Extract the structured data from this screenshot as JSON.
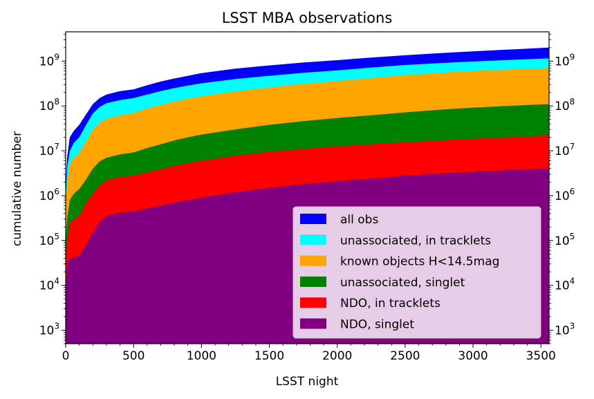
{
  "chart_data": {
    "type": "area",
    "title": "LSST MBA observations",
    "xlabel": "LSST night",
    "ylabel": "cumulative number",
    "xlim": [
      0,
      3560
    ],
    "ylim": [
      500,
      4500000000
    ],
    "yscale": "log",
    "grid": false,
    "legend_position": "lower-right",
    "x_ticks": [
      0,
      500,
      1000,
      1500,
      2000,
      2500,
      3000,
      3500
    ],
    "y_ticks": [
      {
        "value": 1000,
        "base": "10",
        "exp": "3"
      },
      {
        "value": 10000,
        "base": "10",
        "exp": "4"
      },
      {
        "value": 100000,
        "base": "10",
        "exp": "5"
      },
      {
        "value": 1000000,
        "base": "10",
        "exp": "6"
      },
      {
        "value": 10000000,
        "base": "10",
        "exp": "7"
      },
      {
        "value": 100000000,
        "base": "10",
        "exp": "8"
      },
      {
        "value": 1000000000,
        "base": "10",
        "exp": "9"
      }
    ],
    "x": [
      1,
      10,
      30,
      60,
      100,
      150,
      200,
      250,
      300,
      400,
      500,
      600,
      700,
      800,
      900,
      1000,
      1250,
      1500,
      1750,
      2000,
      2250,
      2500,
      2750,
      3000,
      3250,
      3560
    ],
    "series": [
      {
        "name": "all obs",
        "color": "#0000ff",
        "values": [
          2000000,
          7000000,
          20000000,
          28000000,
          38000000,
          65000000,
          110000000,
          150000000,
          180000000,
          215000000,
          235000000,
          290000000,
          350000000,
          410000000,
          470000000,
          540000000,
          680000000,
          800000000,
          930000000,
          1050000000,
          1200000000,
          1350000000,
          1500000000,
          1650000000,
          1800000000,
          2000000000
        ]
      },
      {
        "name": "unassociated, in tracklets",
        "color": "#00ffff",
        "values": [
          1000000,
          4000000,
          10000000,
          15000000,
          20000000,
          38000000,
          68000000,
          95000000,
          115000000,
          135000000,
          150000000,
          180000000,
          215000000,
          250000000,
          285000000,
          320000000,
          400000000,
          470000000,
          550000000,
          620000000,
          720000000,
          820000000,
          900000000,
          980000000,
          1060000000,
          1150000000
        ]
      },
      {
        "name": "known objects H<14.5mag",
        "color": "#ffa500",
        "values": [
          500000,
          2000000,
          5000000,
          7000000,
          9000000,
          16000000,
          30000000,
          42000000,
          52000000,
          62000000,
          70000000,
          88000000,
          105000000,
          125000000,
          145000000,
          165000000,
          210000000,
          260000000,
          310000000,
          360000000,
          420000000,
          490000000,
          550000000,
          600000000,
          650000000,
          700000000
        ]
      },
      {
        "name": "unassociated, singlet",
        "color": "#008000",
        "values": [
          100000,
          300000,
          800000,
          1100000,
          1400000,
          2300000,
          4000000,
          5800000,
          7000000,
          8300000,
          9200000,
          11500000,
          14000000,
          17000000,
          20000000,
          23000000,
          30000000,
          38000000,
          46000000,
          54000000,
          62000000,
          72000000,
          82000000,
          92000000,
          100000000,
          110000000
        ]
      },
      {
        "name": "NDO, in tracklets",
        "color": "#ff0000",
        "values": [
          30000,
          100000,
          250000,
          300000,
          350000,
          700000,
          1100000,
          1700000,
          2200000,
          2600000,
          2800000,
          3300000,
          3900000,
          4600000,
          5300000,
          6000000,
          7800000,
          9500000,
          11000000,
          12500000,
          14000000,
          15500000,
          17000000,
          18500000,
          20000000,
          22000000
        ]
      },
      {
        "name": "NDO, singlet",
        "color": "#800080",
        "values": [
          5000,
          30000,
          40000,
          42000,
          45000,
          80000,
          150000,
          260000,
          350000,
          420000,
          440000,
          520000,
          600000,
          700000,
          800000,
          900000,
          1200000,
          1500000,
          1800000,
          2100000,
          2400000,
          2800000,
          3100000,
          3400000,
          3700000,
          4000000
        ]
      }
    ]
  }
}
